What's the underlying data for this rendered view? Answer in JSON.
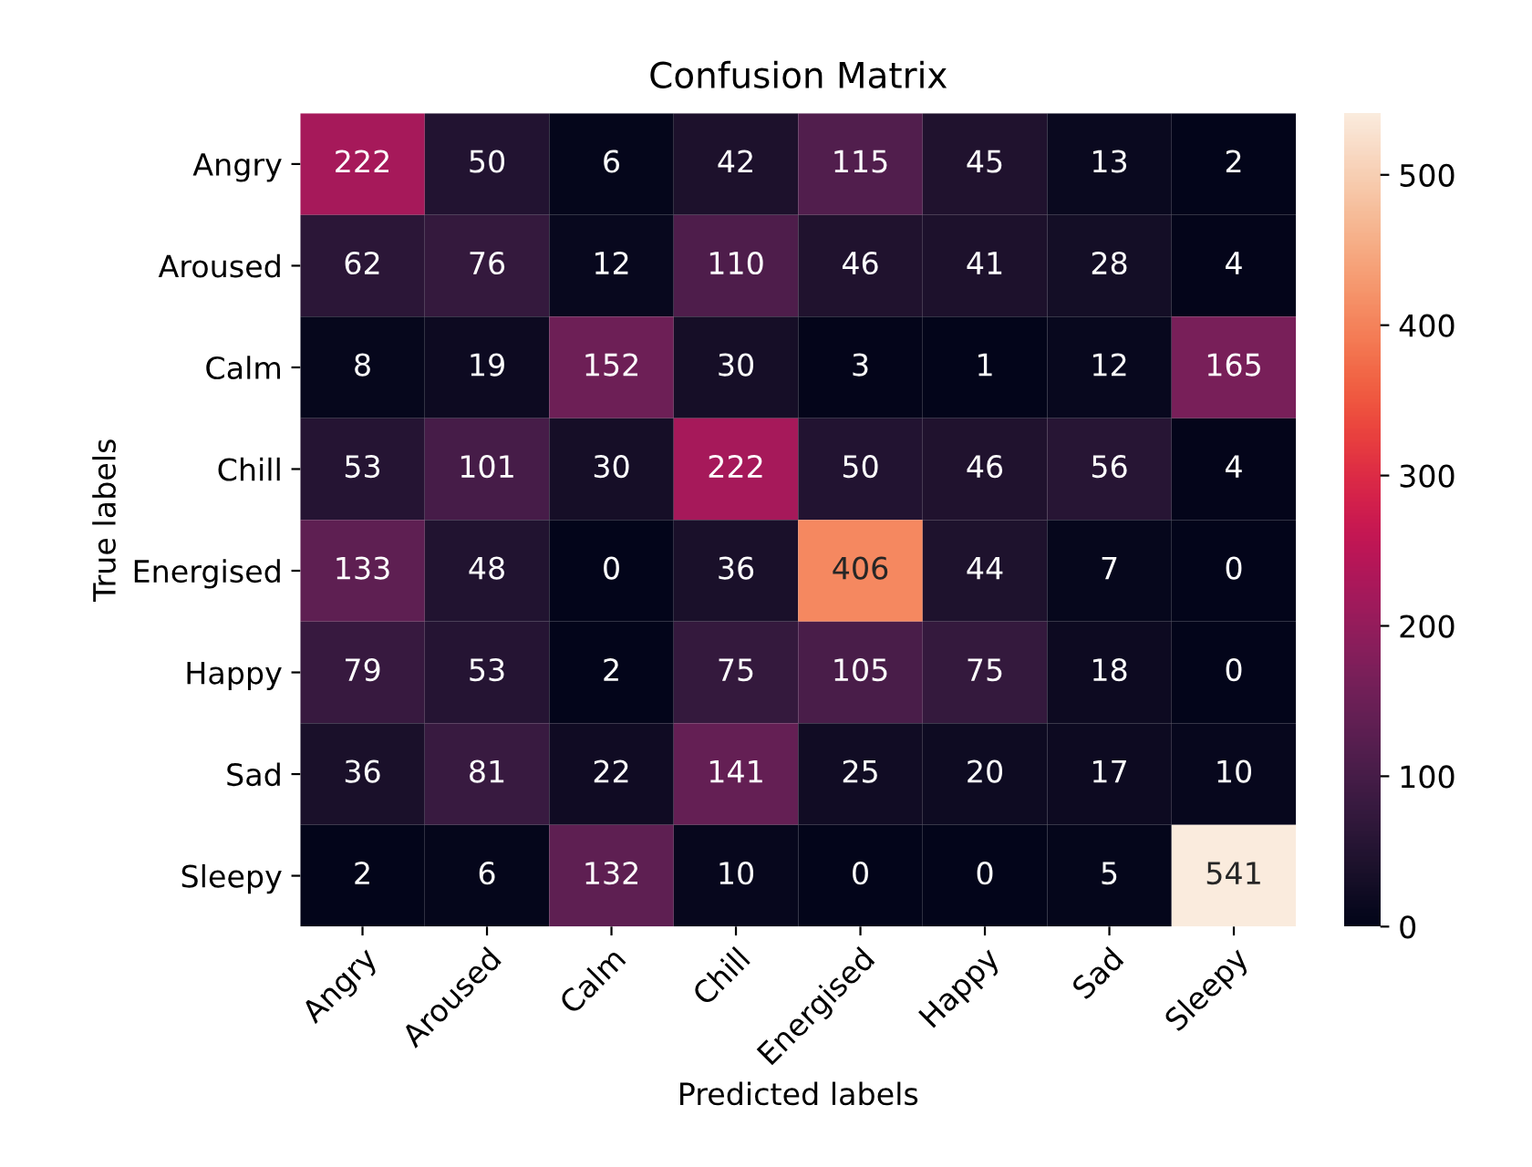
{
  "chart_data": {
    "type": "heatmap",
    "title": "Confusion Matrix",
    "xlabel": "Predicted labels",
    "ylabel": "True labels",
    "categories": [
      "Angry",
      "Aroused",
      "Calm",
      "Chill",
      "Energised",
      "Happy",
      "Sad",
      "Sleepy"
    ],
    "y_categories": [
      "Angry",
      "Aroused",
      "Calm",
      "Chill",
      "Energised",
      "Happy",
      "Sad",
      "Sleepy"
    ],
    "cells": [
      [
        222,
        50,
        6,
        42,
        115,
        45,
        13,
        2
      ],
      [
        62,
        76,
        12,
        110,
        46,
        41,
        28,
        4
      ],
      [
        8,
        19,
        152,
        30,
        3,
        1,
        12,
        165
      ],
      [
        53,
        101,
        30,
        222,
        50,
        46,
        56,
        4
      ],
      [
        133,
        48,
        0,
        36,
        406,
        44,
        7,
        0
      ],
      [
        79,
        53,
        2,
        75,
        105,
        75,
        18,
        0
      ],
      [
        36,
        81,
        22,
        141,
        25,
        20,
        17,
        10
      ],
      [
        2,
        6,
        132,
        10,
        0,
        0,
        5,
        541
      ]
    ],
    "clim": [
      0,
      541
    ],
    "cticks": [
      0,
      100,
      200,
      300,
      400,
      500
    ],
    "data_labels": true
  }
}
